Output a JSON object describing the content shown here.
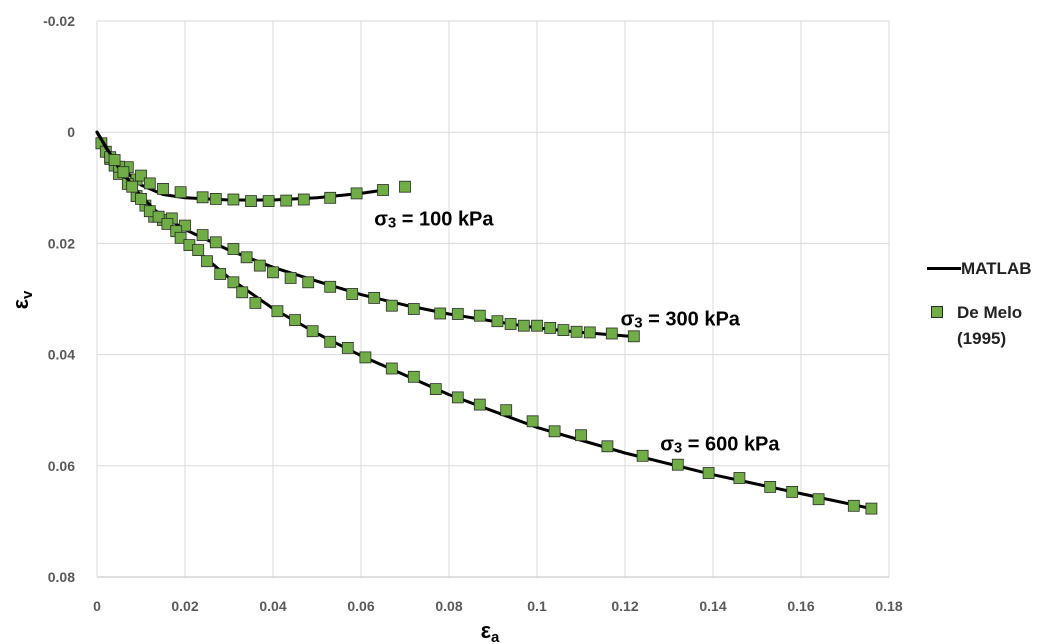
{
  "chart_data": {
    "type": "line",
    "xlabel": "εa",
    "ylabel": "εv",
    "xlim": [
      0,
      0.18
    ],
    "ylim": [
      -0.02,
      0.08
    ],
    "y_inverted": true,
    "x_ticks": [
      "0",
      "0.02",
      "0.04",
      "0.06",
      "0.08",
      "0.1",
      "0.12",
      "0.14",
      "0.16",
      "0.18"
    ],
    "x_tick_values": [
      0,
      0.02,
      0.04,
      0.06,
      0.08,
      0.1,
      0.12,
      0.14,
      0.16,
      0.18
    ],
    "y_ticks": [
      "-0.02",
      "0",
      "0.02",
      "0.04",
      "0.06",
      "0.08"
    ],
    "y_tick_values": [
      -0.02,
      0,
      0.02,
      0.04,
      0.06,
      0.08
    ],
    "grid": true,
    "legend_position": "right",
    "legend": [
      {
        "label": "MATLAB",
        "style": "line",
        "color": "#000000"
      },
      {
        "label": "De Melo (1995)",
        "style": "square-marker",
        "color": "#70ad47"
      }
    ],
    "annotations": [
      {
        "text": "σ3 = 100 kPa",
        "x": 0.063,
        "y": 0.0155
      },
      {
        "text": "σ3 = 300 kPa",
        "x": 0.119,
        "y": 0.0335
      },
      {
        "text": "σ3 = 600 kPa",
        "x": 0.128,
        "y": 0.056
      }
    ],
    "series": [
      {
        "group": "σ3 = 100 kPa",
        "model": [
          [
            0,
            0
          ],
          [
            0.002,
            0.0025
          ],
          [
            0.005,
            0.006
          ],
          [
            0.01,
            0.0095
          ],
          [
            0.015,
            0.0112
          ],
          [
            0.02,
            0.0118
          ],
          [
            0.03,
            0.0122
          ],
          [
            0.04,
            0.0122
          ],
          [
            0.05,
            0.0118
          ],
          [
            0.06,
            0.011
          ],
          [
            0.066,
            0.0103
          ]
        ],
        "experimental": [
          [
            0.001,
            0.002
          ],
          [
            0.002,
            0.0035
          ],
          [
            0.003,
            0.0048
          ],
          [
            0.004,
            0.006
          ],
          [
            0.005,
            0.0075
          ],
          [
            0.007,
            0.0063
          ],
          [
            0.009,
            0.0085
          ],
          [
            0.01,
            0.0078
          ],
          [
            0.012,
            0.0092
          ],
          [
            0.015,
            0.0102
          ],
          [
            0.019,
            0.0108
          ],
          [
            0.024,
            0.0117
          ],
          [
            0.027,
            0.012
          ],
          [
            0.031,
            0.0121
          ],
          [
            0.035,
            0.0124
          ],
          [
            0.039,
            0.0124
          ],
          [
            0.043,
            0.0123
          ],
          [
            0.047,
            0.0121
          ],
          [
            0.053,
            0.0118
          ],
          [
            0.059,
            0.011
          ],
          [
            0.065,
            0.0104
          ],
          [
            0.07,
            0.0098
          ]
        ]
      },
      {
        "group": "σ3 = 300 kPa",
        "model": [
          [
            0,
            0
          ],
          [
            0.005,
            0.0068
          ],
          [
            0.01,
            0.0125
          ],
          [
            0.02,
            0.0175
          ],
          [
            0.03,
            0.0212
          ],
          [
            0.04,
            0.0243
          ],
          [
            0.05,
            0.0268
          ],
          [
            0.06,
            0.0292
          ],
          [
            0.07,
            0.0311
          ],
          [
            0.08,
            0.0327
          ],
          [
            0.09,
            0.034
          ],
          [
            0.1,
            0.0352
          ],
          [
            0.11,
            0.036
          ],
          [
            0.121,
            0.0367
          ]
        ],
        "experimental": [
          [
            0.003,
            0.0045
          ],
          [
            0.005,
            0.0062
          ],
          [
            0.007,
            0.0093
          ],
          [
            0.009,
            0.0115
          ],
          [
            0.011,
            0.0132
          ],
          [
            0.013,
            0.0152
          ],
          [
            0.015,
            0.0158
          ],
          [
            0.017,
            0.0155
          ],
          [
            0.02,
            0.0168
          ],
          [
            0.024,
            0.0185
          ],
          [
            0.027,
            0.0198
          ],
          [
            0.031,
            0.021
          ],
          [
            0.034,
            0.0225
          ],
          [
            0.037,
            0.024
          ],
          [
            0.04,
            0.0252
          ],
          [
            0.044,
            0.0262
          ],
          [
            0.048,
            0.027
          ],
          [
            0.053,
            0.0278
          ],
          [
            0.058,
            0.0291
          ],
          [
            0.063,
            0.0298
          ],
          [
            0.067,
            0.0312
          ],
          [
            0.072,
            0.0318
          ],
          [
            0.078,
            0.0326
          ],
          [
            0.082,
            0.0327
          ],
          [
            0.087,
            0.033
          ],
          [
            0.091,
            0.034
          ],
          [
            0.094,
            0.0345
          ],
          [
            0.097,
            0.0348
          ],
          [
            0.1,
            0.0348
          ],
          [
            0.103,
            0.0352
          ],
          [
            0.106,
            0.0356
          ],
          [
            0.109,
            0.0359
          ],
          [
            0.112,
            0.036
          ],
          [
            0.117,
            0.0362
          ],
          [
            0.122,
            0.0367
          ]
        ]
      },
      {
        "group": "σ3 = 600 kPa",
        "model": [
          [
            0,
            0
          ],
          [
            0.005,
            0.0065
          ],
          [
            0.01,
            0.0115
          ],
          [
            0.02,
            0.0195
          ],
          [
            0.03,
            0.0262
          ],
          [
            0.04,
            0.0317
          ],
          [
            0.05,
            0.0362
          ],
          [
            0.06,
            0.0402
          ],
          [
            0.08,
            0.0472
          ],
          [
            0.1,
            0.0531
          ],
          [
            0.12,
            0.0577
          ],
          [
            0.14,
            0.0616
          ],
          [
            0.16,
            0.065
          ],
          [
            0.176,
            0.0677
          ]
        ],
        "experimental": [
          [
            0.004,
            0.005
          ],
          [
            0.006,
            0.0072
          ],
          [
            0.008,
            0.0098
          ],
          [
            0.01,
            0.012
          ],
          [
            0.012,
            0.0142
          ],
          [
            0.014,
            0.0152
          ],
          [
            0.016,
            0.0165
          ],
          [
            0.018,
            0.0178
          ],
          [
            0.019,
            0.019
          ],
          [
            0.021,
            0.0203
          ],
          [
            0.023,
            0.0212
          ],
          [
            0.025,
            0.0232
          ],
          [
            0.028,
            0.0255
          ],
          [
            0.031,
            0.027
          ],
          [
            0.033,
            0.0288
          ],
          [
            0.036,
            0.0307
          ],
          [
            0.041,
            0.0322
          ],
          [
            0.045,
            0.0338
          ],
          [
            0.049,
            0.0358
          ],
          [
            0.053,
            0.0377
          ],
          [
            0.057,
            0.0388
          ],
          [
            0.061,
            0.0405
          ],
          [
            0.067,
            0.0425
          ],
          [
            0.072,
            0.044
          ],
          [
            0.077,
            0.0462
          ],
          [
            0.082,
            0.0477
          ],
          [
            0.087,
            0.049
          ],
          [
            0.093,
            0.05
          ],
          [
            0.099,
            0.052
          ],
          [
            0.104,
            0.0538
          ],
          [
            0.11,
            0.0545
          ],
          [
            0.116,
            0.0565
          ],
          [
            0.124,
            0.0582
          ],
          [
            0.132,
            0.0598
          ],
          [
            0.139,
            0.0613
          ],
          [
            0.146,
            0.0622
          ],
          [
            0.153,
            0.0638
          ],
          [
            0.158,
            0.0647
          ],
          [
            0.164,
            0.066
          ],
          [
            0.172,
            0.0672
          ],
          [
            0.176,
            0.0677
          ]
        ]
      }
    ]
  },
  "colors": {
    "marker_fill": "#70ad47",
    "marker_stroke": "#2a2a2a",
    "line": "#000000",
    "grid": "#d9d9d9"
  }
}
